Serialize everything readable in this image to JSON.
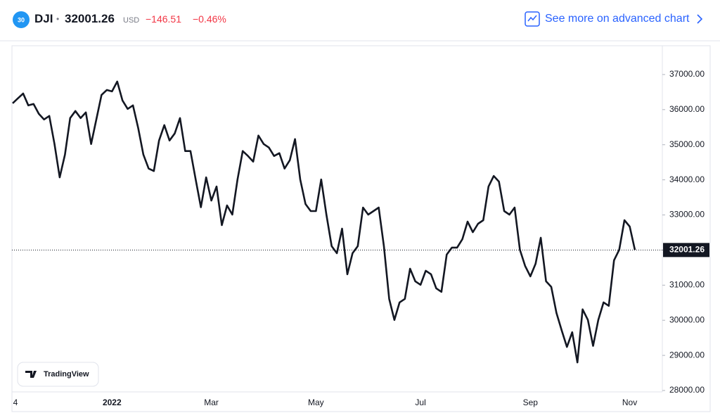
{
  "header": {
    "badge": "30",
    "symbol": "DJI",
    "separator": "•",
    "price": "32001.26",
    "currency": "USD",
    "change": "−146.51",
    "change_pct": "−0.46%",
    "link": "See more on advanced chart"
  },
  "brand": "TradingView",
  "chart_data": {
    "type": "line",
    "color": "#131722",
    "categories": [
      "4",
      null,
      null,
      null,
      null,
      null,
      null,
      null,
      null,
      null,
      null,
      null,
      null,
      null,
      null,
      null,
      null,
      null,
      null,
      "2022",
      null,
      null,
      null,
      null,
      null,
      null,
      null,
      null,
      null,
      null,
      null,
      null,
      null,
      null,
      null,
      null,
      null,
      null,
      "Mar",
      null,
      null,
      null,
      null,
      null,
      null,
      null,
      null,
      null,
      null,
      null,
      null,
      null,
      null,
      null,
      null,
      null,
      null,
      null,
      "May",
      null,
      null,
      null,
      null,
      null,
      null,
      null,
      null,
      null,
      null,
      null,
      null,
      null,
      null,
      null,
      null,
      null,
      null,
      null,
      "Jul",
      null,
      null,
      null,
      null,
      null,
      null,
      null,
      null,
      null,
      null,
      null,
      null,
      null,
      null,
      null,
      null,
      null,
      null,
      null,
      null,
      "Sep",
      null,
      null,
      null,
      null,
      null,
      null,
      null,
      null,
      null,
      null,
      null,
      null,
      null,
      null,
      null,
      null,
      null,
      null,
      "Nov",
      null
    ],
    "values": [
      36180,
      36320,
      36460,
      36120,
      36160,
      35880,
      35720,
      35820,
      35020,
      34070,
      34720,
      35760,
      35960,
      35760,
      35920,
      35020,
      35720,
      36420,
      36560,
      36520,
      36800,
      36260,
      36020,
      36120,
      35480,
      34720,
      34320,
      34250,
      35120,
      35560,
      35120,
      35320,
      35760,
      34820,
      34820,
      34010,
      33220,
      34070,
      33410,
      33810,
      32710,
      33270,
      33010,
      34010,
      34820,
      34680,
      34520,
      35260,
      35020,
      34920,
      34680,
      34760,
      34320,
      34560,
      35160,
      34010,
      33310,
      33110,
      33110,
      34010,
      33010,
      32110,
      31910,
      32610,
      31310,
      31910,
      32110,
      33210,
      33010,
      33110,
      33210,
      32110,
      30610,
      30010,
      30510,
      30610,
      31470,
      31110,
      31010,
      31410,
      31310,
      30910,
      30810,
      31870,
      32070,
      32070,
      32310,
      32810,
      32510,
      32750,
      32850,
      33810,
      34110,
      33950,
      33110,
      33010,
      33210,
      32010,
      31550,
      31250,
      31610,
      32350,
      31110,
      30950,
      30210,
      29710,
      29240,
      29660,
      28800,
      30310,
      30010,
      29270,
      30010,
      30510,
      30410,
      31710,
      32010,
      32850,
      32670,
      32001.26
    ],
    "ylim": [
      27960,
      37820
    ],
    "yticks": [
      {
        "value": 28000,
        "label": "28000.00"
      },
      {
        "value": 29000,
        "label": "29000.00"
      },
      {
        "value": 30000,
        "label": "30000.00"
      },
      {
        "value": 31000,
        "label": "31000.00"
      },
      {
        "value": 32000,
        "label": "32000.00"
      },
      {
        "value": 33000,
        "label": "33000.00"
      },
      {
        "value": 34000,
        "label": "34000.00"
      },
      {
        "value": 35000,
        "label": "35000.00"
      },
      {
        "value": 36000,
        "label": "36000.00"
      },
      {
        "value": 37000,
        "label": "37000.00"
      }
    ]
  }
}
